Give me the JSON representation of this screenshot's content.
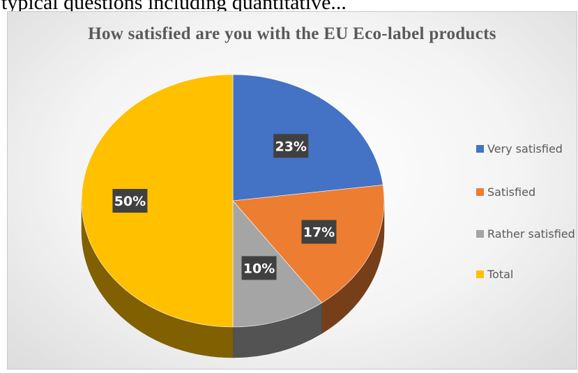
{
  "page_heading": "typical questions including quantitative...",
  "chart_data": {
    "type": "pie",
    "title": "How satisfied are you with the EU Eco-label products",
    "categories": [
      "Very satisfied",
      "Satisfied",
      "Rather satisfied",
      "Total"
    ],
    "values": [
      23,
      17,
      10,
      50
    ],
    "data_labels": [
      "23%",
      "17%",
      "10%",
      "50%"
    ],
    "colors": [
      "#4472c4",
      "#ed7d31",
      "#a5a5a5",
      "#ffc000"
    ],
    "legend_position": "right",
    "style": "3d"
  }
}
